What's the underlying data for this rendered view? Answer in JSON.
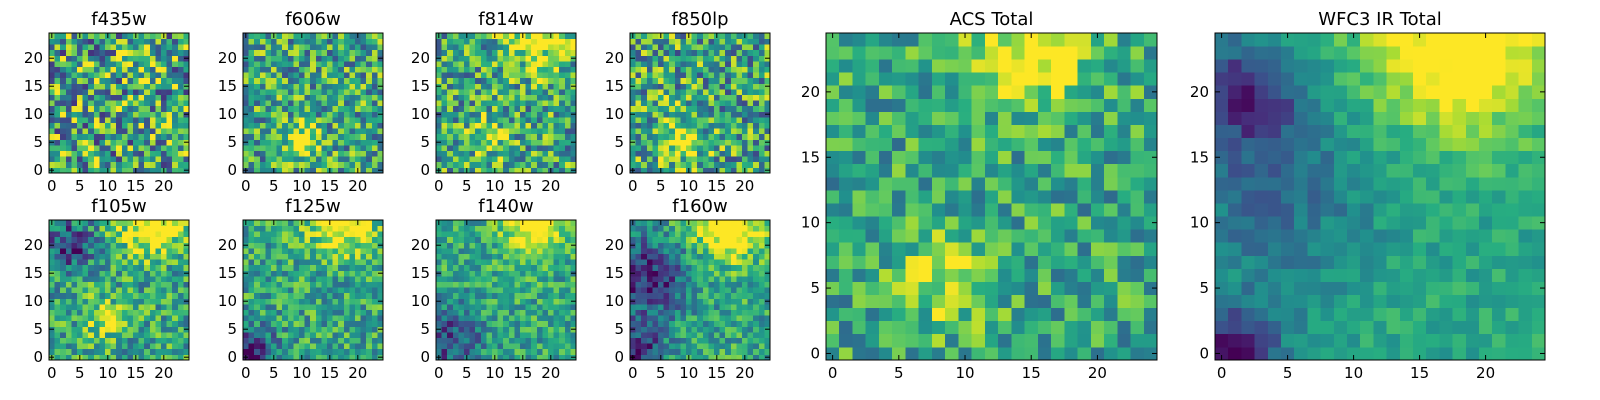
{
  "chart_data": [
    {
      "type": "heatmap",
      "title": "f435w",
      "grid_size": 25,
      "xlim": [
        0,
        24
      ],
      "ylim": [
        0,
        24
      ],
      "xticks": [
        "0",
        "5",
        "10",
        "15",
        "20"
      ],
      "yticks": [
        "0",
        "5",
        "10",
        "15",
        "20"
      ],
      "colormap": "viridis",
      "value_range": [
        0,
        1
      ],
      "seed": 11,
      "noise": 0.9,
      "blobs": [
        {
          "x": 16,
          "y": 19,
          "s": 3,
          "a": 0.15
        }
      ]
    },
    {
      "type": "heatmap",
      "title": "f606w",
      "grid_size": 25,
      "xlim": [
        0,
        24
      ],
      "ylim": [
        0,
        24
      ],
      "xticks": [
        "0",
        "5",
        "10",
        "15",
        "20"
      ],
      "yticks": [
        "0",
        "5",
        "10",
        "15",
        "20"
      ],
      "colormap": "viridis",
      "value_range": [
        0,
        1
      ],
      "seed": 23,
      "noise": 0.7,
      "blobs": [
        {
          "x": 10,
          "y": 5,
          "s": 2.2,
          "a": 0.5
        }
      ]
    },
    {
      "type": "heatmap",
      "title": "f814w",
      "grid_size": 25,
      "xlim": [
        0,
        24
      ],
      "ylim": [
        0,
        24
      ],
      "xticks": [
        "0",
        "5",
        "10",
        "15",
        "20"
      ],
      "yticks": [
        "0",
        "5",
        "10",
        "15",
        "20"
      ],
      "colormap": "viridis",
      "value_range": [
        0,
        1
      ],
      "seed": 37,
      "noise": 0.7,
      "blobs": [
        {
          "x": 17,
          "y": 24,
          "s": 4,
          "a": 0.45
        },
        {
          "x": 9,
          "y": 6,
          "s": 2.5,
          "a": 0.3
        }
      ]
    },
    {
      "type": "heatmap",
      "title": "f850lp",
      "grid_size": 25,
      "xlim": [
        0,
        24
      ],
      "ylim": [
        0,
        24
      ],
      "xticks": [
        "0",
        "5",
        "10",
        "15",
        "20"
      ],
      "yticks": [
        "0",
        "5",
        "10",
        "15",
        "20"
      ],
      "colormap": "viridis",
      "value_range": [
        0,
        1
      ],
      "seed": 51,
      "noise": 0.75,
      "blobs": [
        {
          "x": 8,
          "y": 6,
          "s": 3,
          "a": 0.35
        }
      ]
    },
    {
      "type": "heatmap",
      "title": "f105w",
      "grid_size": 25,
      "xlim": [
        0,
        24
      ],
      "ylim": [
        0,
        24
      ],
      "xticks": [
        "0",
        "5",
        "10",
        "15",
        "20"
      ],
      "yticks": [
        "0",
        "5",
        "10",
        "15",
        "20"
      ],
      "colormap": "viridis",
      "value_range": [
        0,
        1
      ],
      "seed": 64,
      "noise": 0.55,
      "blobs": [
        {
          "x": 18,
          "y": 24,
          "s": 4,
          "a": 0.5
        },
        {
          "x": 3,
          "y": 20,
          "s": 3,
          "a": -0.45
        },
        {
          "x": 9,
          "y": 7,
          "s": 2.5,
          "a": 0.3
        }
      ]
    },
    {
      "type": "heatmap",
      "title": "f125w",
      "grid_size": 25,
      "xlim": [
        0,
        24
      ],
      "ylim": [
        0,
        24
      ],
      "xticks": [
        "0",
        "5",
        "10",
        "15",
        "20"
      ],
      "yticks": [
        "0",
        "5",
        "10",
        "15",
        "20"
      ],
      "colormap": "viridis",
      "value_range": [
        0,
        1
      ],
      "seed": 78,
      "noise": 0.5,
      "blobs": [
        {
          "x": 17,
          "y": 24,
          "s": 4,
          "a": 0.5
        },
        {
          "x": 1,
          "y": 1,
          "s": 3,
          "a": -0.6
        }
      ]
    },
    {
      "type": "heatmap",
      "title": "f140w",
      "grid_size": 25,
      "xlim": [
        0,
        24
      ],
      "ylim": [
        0,
        24
      ],
      "xticks": [
        "0",
        "5",
        "10",
        "15",
        "20"
      ],
      "yticks": [
        "0",
        "5",
        "10",
        "15",
        "20"
      ],
      "colormap": "viridis",
      "value_range": [
        0,
        1
      ],
      "seed": 91,
      "noise": 0.45,
      "blobs": [
        {
          "x": 17,
          "y": 24,
          "s": 4,
          "a": 0.55
        },
        {
          "x": 2,
          "y": 3,
          "s": 4,
          "a": -0.4
        }
      ]
    },
    {
      "type": "heatmap",
      "title": "f160w",
      "grid_size": 25,
      "xlim": [
        0,
        24
      ],
      "ylim": [
        0,
        24
      ],
      "xticks": [
        "0",
        "5",
        "10",
        "15",
        "20"
      ],
      "yticks": [
        "0",
        "5",
        "10",
        "15",
        "20"
      ],
      "colormap": "viridis",
      "value_range": [
        0,
        1
      ],
      "seed": 105,
      "noise": 0.45,
      "blobs": [
        {
          "x": 17,
          "y": 24,
          "s": 4.5,
          "a": 0.6
        },
        {
          "x": 3,
          "y": 14,
          "s": 5,
          "a": -0.5
        },
        {
          "x": 1,
          "y": 1,
          "s": 3,
          "a": -0.5
        }
      ]
    },
    {
      "type": "heatmap",
      "title": "ACS Total",
      "grid_size": 25,
      "xlim": [
        0,
        24
      ],
      "ylim": [
        0,
        24
      ],
      "xticks": [
        "0",
        "5",
        "10",
        "15",
        "20"
      ],
      "yticks": [
        "0",
        "5",
        "10",
        "15",
        "20"
      ],
      "colormap": "viridis",
      "value_range": [
        0,
        1
      ],
      "seed": 131,
      "noise": 0.5,
      "blobs": [
        {
          "x": 15,
          "y": 24,
          "s": 3.5,
          "a": 0.45
        },
        {
          "x": 9,
          "y": 6,
          "s": 2.5,
          "a": 0.35
        }
      ]
    },
    {
      "type": "heatmap",
      "title": "WFC3 IR Total",
      "grid_size": 25,
      "xlim": [
        0,
        24
      ],
      "ylim": [
        0,
        24
      ],
      "xticks": [
        "0",
        "5",
        "10",
        "15",
        "20"
      ],
      "yticks": [
        "0",
        "5",
        "10",
        "15",
        "20"
      ],
      "colormap": "viridis",
      "value_range": [
        0,
        1
      ],
      "seed": 147,
      "noise": 0.22,
      "blobs": [
        {
          "x": 18,
          "y": 24,
          "s": 5,
          "a": 0.55
        },
        {
          "x": 2,
          "y": 20,
          "s": 3,
          "a": -0.45
        },
        {
          "x": 1,
          "y": 0,
          "s": 2.5,
          "a": -0.55
        },
        {
          "x": 4,
          "y": 12,
          "s": 5,
          "a": -0.25
        }
      ]
    }
  ]
}
